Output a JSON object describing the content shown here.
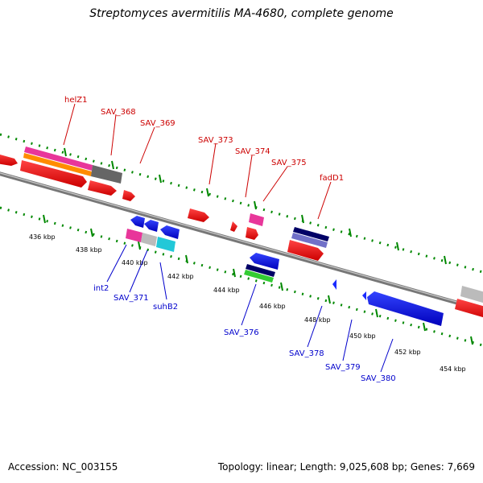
{
  "title": "Streptomyces avermitilis MA-4680, complete genome",
  "footer": {
    "accession": "Accession: NC_003155",
    "stats": "Topology: linear; Length: 9,025,608 bp; Genes: 7,669"
  },
  "colors": {
    "forward_label": "#cc0000",
    "reverse_label": "#0000cc",
    "backbone": "#888888",
    "ticks": "#008800"
  },
  "ticks": [
    "436 kbp",
    "438 kbp",
    "440 kbp",
    "442 kbp",
    "444 kbp",
    "446 kbp",
    "448 kbp",
    "450 kbp",
    "452 kbp",
    "454 kbp"
  ],
  "forward_genes": [
    "helZ1",
    "SAV_368",
    "SAV_369",
    "SAV_373",
    "SAV_374",
    "SAV_375",
    "fadD1"
  ],
  "reverse_genes": [
    "int2",
    "SAV_371",
    "suhB2",
    "SAV_376",
    "SAV_378",
    "SAV_379",
    "SAV_380"
  ]
}
